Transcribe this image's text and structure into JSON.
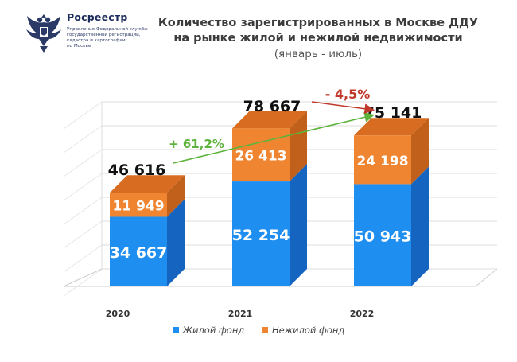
{
  "header": {
    "org_name": "Росреестр",
    "org_subtitle": [
      "Управление Федеральной службы",
      "государственной регистрации,",
      "кадастра и картографии",
      "по Москве"
    ]
  },
  "title": {
    "line1": "Количество зарегистрированных в Москве ДДУ",
    "line2": "на рынке жилой и нежилой недвижимости",
    "line3": "(январь - июль)"
  },
  "colors": {
    "residential_front": "#1e8ef0",
    "residential_side": "#1565c0",
    "commercial_front": "#ef8530",
    "commercial_side": "#c1601a",
    "commercial_top": "#d86d22",
    "up_arrow": "#5db33b",
    "down_arrow": "#c0392b"
  },
  "chart_data": {
    "type": "bar",
    "stacked": true,
    "categories": [
      "2020",
      "2021",
      "2022"
    ],
    "series": [
      {
        "name": "Жилой фонд",
        "values": [
          34667,
          52254,
          50943
        ],
        "labels": [
          "34 667",
          "52 254",
          "50 943"
        ]
      },
      {
        "name": "Нежилой фонд",
        "values": [
          11949,
          26413,
          24198
        ],
        "labels": [
          "11 949",
          "26 413",
          "24 198"
        ]
      }
    ],
    "totals": [
      46616,
      78667,
      75141
    ],
    "total_labels": [
      "46 616",
      "78 667",
      "75 141"
    ],
    "annotations": [
      {
        "text": "+ 61,2%",
        "from": "2020",
        "to": "2022"
      },
      {
        "text": "- 4,5%",
        "from": "2021",
        "to": "2022"
      }
    ],
    "legend_position": "bottom"
  }
}
